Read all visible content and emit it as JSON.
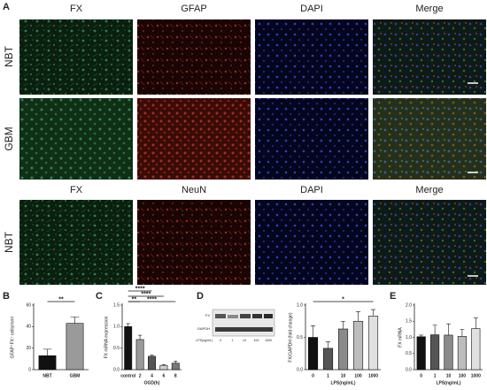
{
  "figure": {
    "panel_a": {
      "label": "A",
      "headers_top": [
        "FX",
        "GFAP",
        "DAPI",
        "Merge"
      ],
      "rows_top": [
        "NBT",
        "GBM"
      ],
      "headers_bottom": [
        "FX",
        "NeuN",
        "DAPI",
        "Merge"
      ],
      "rows_bottom": [
        "NBT"
      ]
    },
    "blot": {
      "bands": [
        "FX",
        "GAPDH"
      ],
      "lane_label": "LPS(ng/mL)",
      "lanes": [
        "0",
        "1",
        "10",
        "100",
        "1000"
      ]
    }
  },
  "chart_data": [
    {
      "type": "bar",
      "label": "B",
      "ylabel": "GFAP⁺FX⁺ cells/mm²",
      "categories": [
        "NBT",
        "GBM"
      ],
      "values": [
        13,
        43
      ],
      "errors": [
        6,
        6
      ],
      "colors": [
        "#111111",
        "#9a9a9a"
      ],
      "ylim": [
        0,
        60
      ],
      "yticks": [
        0,
        20,
        40,
        60
      ],
      "annotations": [
        {
          "text": "**",
          "span": [
            "NBT",
            "GBM"
          ]
        }
      ]
    },
    {
      "type": "bar",
      "label": "C",
      "ylabel": "FX mRNA expression",
      "xlabel": "OGD(h)",
      "categories": [
        "control",
        "2",
        "4",
        "6",
        "8"
      ],
      "values": [
        1.0,
        0.7,
        0.31,
        0.1,
        0.15
      ],
      "errors": [
        0.07,
        0.1,
        0.03,
        0.02,
        0.05
      ],
      "colors": [
        "#111111",
        "#9a9a9a",
        "#555555",
        "#cfcfcf",
        "#777777"
      ],
      "ylim": [
        0,
        1.5
      ],
      "yticks": [
        {
          "value": 0,
          "label": "0.0"
        },
        {
          "value": 0.5,
          "label": "0.5"
        },
        {
          "value": 1,
          "label": "1.0"
        },
        {
          "value": 1.5,
          "label": "1.5"
        }
      ],
      "annotations": [
        {
          "text": "**",
          "span": [
            "control",
            "2"
          ]
        },
        {
          "text": "****",
          "span": [
            "control",
            "4"
          ]
        },
        {
          "text": "****",
          "span": [
            "control",
            "6"
          ]
        },
        {
          "text": "****",
          "span": [
            "control",
            "8"
          ]
        }
      ]
    },
    {
      "type": "bar",
      "label": "D",
      "ylabel": "FX/GAPDH (fold change)",
      "xlabel": "LPS(ng/mL)",
      "categories": [
        "0",
        "1",
        "10",
        "100",
        "1000"
      ],
      "values": [
        0.5,
        0.33,
        0.63,
        0.75,
        0.83
      ],
      "errors": [
        0.18,
        0.1,
        0.12,
        0.15,
        0.1
      ],
      "colors": [
        "#111111",
        "#555555",
        "#8a8a8a",
        "#bdbdbd",
        "#e0e0e0"
      ],
      "ylim": [
        0,
        1.0
      ],
      "yticks": [
        {
          "value": 0,
          "label": "0.0"
        },
        {
          "value": 0.5,
          "label": "0.5"
        },
        {
          "value": 1,
          "label": "1.0"
        }
      ],
      "annotations": [
        {
          "text": "*",
          "span": [
            "0",
            "1000"
          ]
        }
      ]
    },
    {
      "type": "bar",
      "label": "E",
      "ylabel": "FX mRNA",
      "xlabel": "LPS(ng/mL)",
      "categories": [
        "0",
        "1",
        "10",
        "100",
        "1000"
      ],
      "values": [
        1.02,
        1.08,
        1.07,
        1.03,
        1.27
      ],
      "errors": [
        0.05,
        0.3,
        0.35,
        0.22,
        0.33
      ],
      "colors": [
        "#111111",
        "#555555",
        "#8a8a8a",
        "#bdbdbd",
        "#e0e0e0"
      ],
      "ylim": [
        0,
        2.0
      ],
      "yticks": [
        {
          "value": 0,
          "label": "0.0"
        },
        {
          "value": 0.5,
          "label": "0.5"
        },
        {
          "value": 1,
          "label": "1.0"
        },
        {
          "value": 1.5,
          "label": "1.5"
        },
        {
          "value": 2,
          "label": "2.0"
        }
      ],
      "annotations": []
    }
  ]
}
